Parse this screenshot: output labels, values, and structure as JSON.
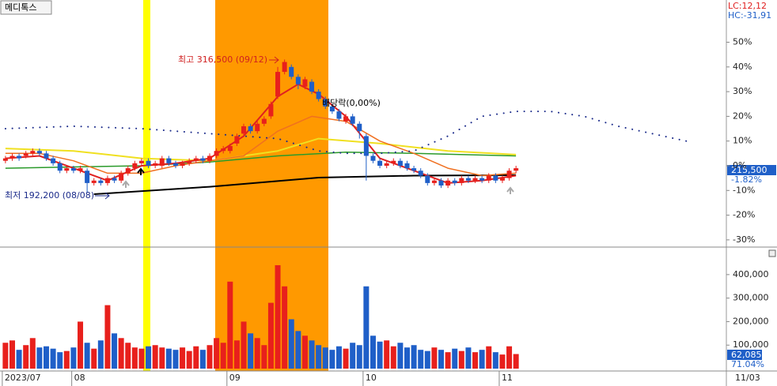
{
  "title": "메디톡스",
  "lc": "LC:12,12",
  "hc": "HC:-31,91",
  "chart_data": [
    {
      "type": "candlestick",
      "annotations": {
        "high": "최고 316,500 (09/12)",
        "low": "최저 192,200 (08/08)",
        "dividend": "배당락(0,00%)"
      },
      "price_label": "215,500",
      "change_label": "-1.82%",
      "up_color": "#e8201c",
      "down_color": "#1f5fc8",
      "xlim": [
        -0.8,
        105.9
      ],
      "ylim": [
        -32.6,
        67.1
      ],
      "xticks": [
        {
          "value": 0,
          "label": "2023/07"
        },
        {
          "value": 10.2,
          "label": "08"
        },
        {
          "value": 33,
          "label": "09"
        },
        {
          "value": 53,
          "label": "10"
        },
        {
          "value": 73,
          "label": "11"
        }
      ],
      "yticks": [
        {
          "value": 50,
          "label": "50%"
        },
        {
          "value": 40,
          "label": "40%"
        },
        {
          "value": 30,
          "label": "30%"
        },
        {
          "value": 20,
          "label": "20%"
        },
        {
          "value": 10,
          "label": "10%"
        },
        {
          "value": 0,
          "label": "0%"
        },
        {
          "value": -10,
          "label": "-10%"
        },
        {
          "value": -20,
          "label": "-20%"
        },
        {
          "value": -30,
          "label": "-30%"
        }
      ],
      "open": [
        2,
        3,
        4,
        4,
        5,
        6,
        5,
        3,
        1,
        -2,
        -1,
        -2,
        -2,
        -7,
        -6,
        -7,
        -5,
        -6,
        -3,
        -1,
        1,
        2,
        0,
        0,
        3,
        1,
        0,
        1,
        2,
        3,
        2,
        4,
        6,
        6,
        9,
        13,
        16,
        14,
        17,
        20,
        28,
        38,
        40,
        36,
        32,
        34,
        30,
        27,
        24,
        22,
        18,
        20,
        17,
        12,
        4,
        2,
        0,
        1,
        2,
        1,
        -1,
        -2,
        -4,
        -7,
        -6,
        -8,
        -6,
        -7,
        -5,
        -6,
        -5,
        -6,
        -4,
        -6,
        -5,
        -2
      ],
      "high": [
        4,
        5,
        5,
        6,
        7,
        7,
        6,
        4,
        2,
        0,
        0,
        0,
        -1,
        -5,
        -5,
        -4,
        -4,
        -2,
        0,
        2,
        3,
        3,
        2,
        4,
        4,
        2,
        2,
        3,
        4,
        4,
        5,
        7,
        8,
        9,
        13,
        17,
        17,
        18,
        20,
        26,
        40,
        43,
        41,
        37,
        36,
        35,
        31,
        28,
        25,
        23,
        21,
        21,
        18,
        13,
        5,
        3,
        2,
        3,
        3,
        2,
        0,
        -1,
        -3,
        -5,
        -5,
        -5,
        -5,
        -4,
        -4,
        -4,
        -4,
        -3,
        -3,
        -4,
        -1,
        0
      ],
      "low": [
        1,
        2,
        2,
        3,
        4,
        4,
        2,
        0,
        -3,
        -3,
        -3,
        -3,
        -11,
        -8,
        -8,
        -8,
        -7,
        -7,
        -4,
        -2,
        0,
        -1,
        -1,
        -1,
        0,
        -1,
        -1,
        0,
        1,
        1,
        1,
        3,
        5,
        5,
        8,
        12,
        13,
        13,
        16,
        19,
        27,
        37,
        35,
        31,
        31,
        29,
        26,
        23,
        21,
        18,
        17,
        16,
        11,
        -6,
        1,
        -1,
        -1,
        0,
        -1,
        -2,
        -3,
        -5,
        -8,
        -8,
        -9,
        -9,
        -8,
        -8,
        -7,
        -7,
        -7,
        -7,
        -7,
        -7,
        -6,
        -3
      ],
      "close": [
        3,
        4,
        3,
        5,
        6,
        5,
        3,
        1,
        -2,
        -1,
        -2,
        -1,
        -7,
        -6,
        -7,
        -5,
        -6,
        -3,
        -1,
        1,
        2,
        0,
        1,
        3,
        1,
        0,
        1,
        2,
        3,
        2,
        4,
        6,
        7,
        8,
        12,
        16,
        14,
        17,
        19,
        25,
        38,
        42,
        36,
        33,
        35,
        30,
        27,
        24,
        22,
        19,
        20,
        17,
        14,
        4,
        2,
        0,
        1,
        2,
        0,
        -1,
        -2,
        -4,
        -7,
        -6,
        -8,
        -6,
        -7,
        -5,
        -6,
        -5,
        -6,
        -4,
        -6,
        -5,
        -2,
        -1
      ],
      "lines": [
        {
          "color": "#000000",
          "width": 2,
          "x": [
            13,
            30,
            46,
            60,
            75
          ],
          "values": [
            -11.5,
            -8.5,
            -4.8,
            -4,
            -3.8
          ]
        },
        {
          "color": "#2a9a2a",
          "width": 1.5,
          "x": [
            0,
            10,
            20,
            30,
            40,
            50,
            60,
            75
          ],
          "values": [
            -1,
            -0.5,
            0,
            1.5,
            4,
            5.5,
            5,
            4
          ]
        },
        {
          "color": "#f0e020",
          "width": 2,
          "x": [
            0,
            10,
            20,
            30,
            40,
            46,
            55,
            65,
            75
          ],
          "values": [
            7,
            6,
            3,
            2,
            6,
            11,
            9,
            6,
            4.5
          ]
        },
        {
          "color": "#f07020",
          "width": 1.5,
          "x": [
            0,
            5,
            10,
            15,
            20,
            25,
            30,
            35,
            40,
            45,
            50,
            55,
            60,
            65,
            70,
            75
          ],
          "values": [
            5,
            5,
            2,
            -3,
            -3,
            0,
            2,
            4,
            14,
            20,
            18,
            10,
            5,
            -1,
            -4,
            -3
          ]
        },
        {
          "color": "#e02020",
          "width": 2,
          "x": [
            0,
            5,
            10,
            15,
            20,
            25,
            30,
            35,
            40,
            43,
            46,
            50,
            55,
            60,
            65,
            70,
            75
          ],
          "values": [
            3,
            4,
            -1,
            -6,
            0,
            1,
            3,
            12,
            28,
            33,
            29,
            20,
            3,
            -2,
            -7,
            -6,
            -4
          ]
        },
        {
          "color": "#1a2a8a",
          "width": 2,
          "style": "dotted",
          "x": [
            0,
            10,
            20,
            30,
            40,
            46,
            50,
            55,
            60,
            65,
            70,
            75,
            80,
            85,
            90,
            100
          ],
          "values": [
            15,
            16,
            15,
            13,
            11,
            6,
            5,
            5,
            6,
            12,
            20,
            22,
            22,
            20,
            16,
            10
          ]
        }
      ]
    },
    {
      "type": "bar",
      "value_label": "62,085",
      "ratio_label": "71.04%",
      "end_date": "11/03",
      "xlim": [
        -0.8,
        105.9
      ],
      "ylim": [
        0,
        507000
      ],
      "yticks": [
        {
          "value": 100000,
          "label": "100,000"
        },
        {
          "value": 200000,
          "label": "200,000"
        },
        {
          "value": 300000,
          "label": "300,000"
        },
        {
          "value": 400000,
          "label": "400,000"
        }
      ],
      "values": [
        110000,
        120000,
        80000,
        100000,
        130000,
        90000,
        95000,
        85000,
        70000,
        75000,
        90000,
        200000,
        110000,
        85000,
        120000,
        270000,
        150000,
        130000,
        110000,
        90000,
        85000,
        95000,
        100000,
        90000,
        85000,
        80000,
        90000,
        75000,
        95000,
        80000,
        100000,
        130000,
        110000,
        370000,
        120000,
        200000,
        150000,
        130000,
        100000,
        280000,
        440000,
        350000,
        210000,
        160000,
        140000,
        120000,
        100000,
        90000,
        80000,
        95000,
        85000,
        110000,
        100000,
        350000,
        140000,
        115000,
        120000,
        95000,
        110000,
        90000,
        100000,
        80000,
        75000,
        90000,
        80000,
        70000,
        85000,
        75000,
        90000,
        70000,
        80000,
        95000,
        70000,
        60000,
        95000,
        62085
      ]
    }
  ]
}
